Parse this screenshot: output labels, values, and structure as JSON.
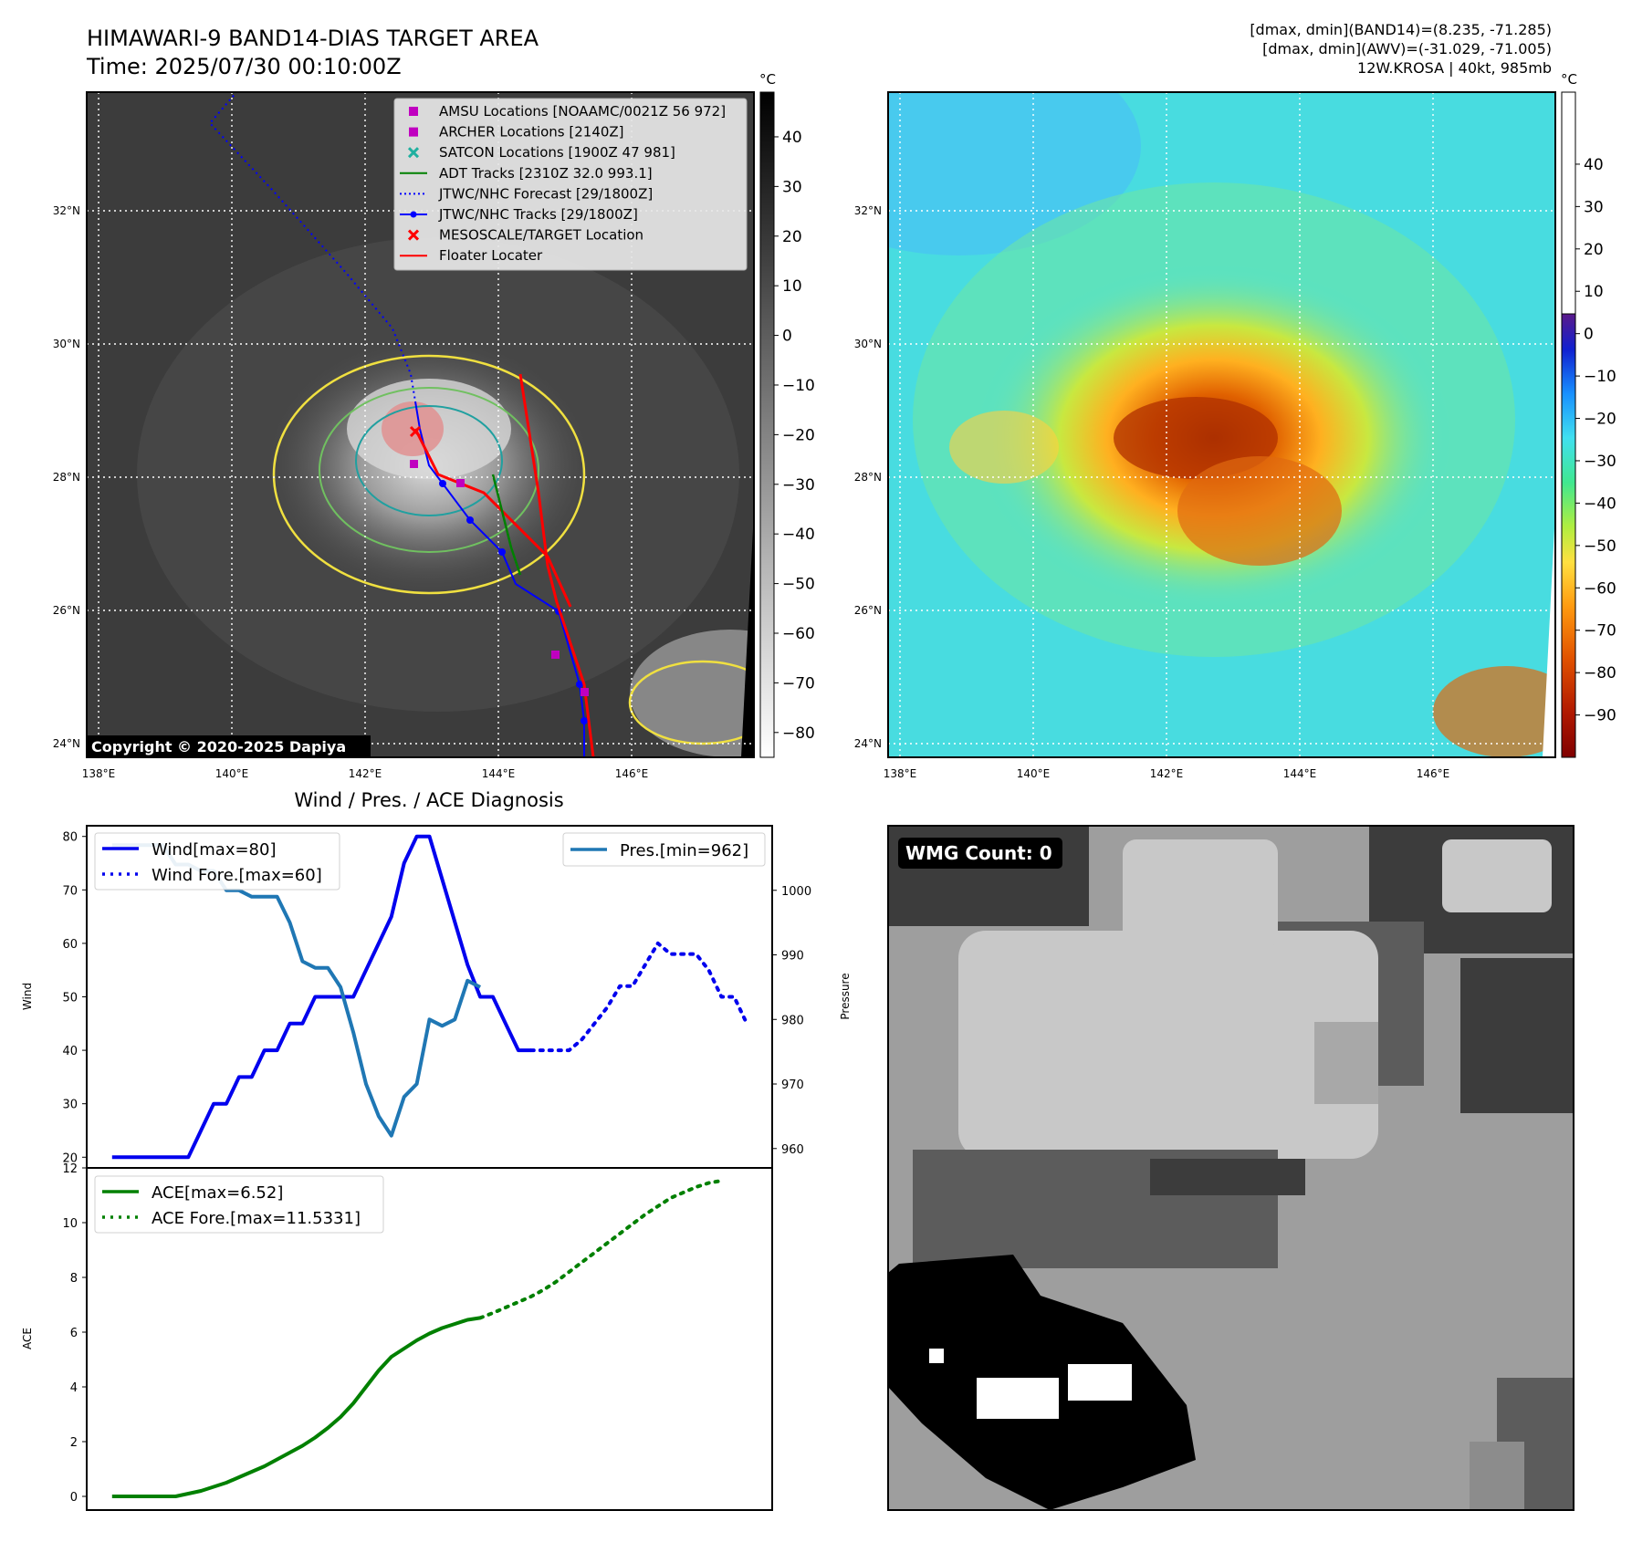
{
  "header": {
    "title_line1": "HIMAWARI-9 BAND14-DIAS TARGET AREA",
    "title_line2": "Time: 2025/07/30 00:10:00Z",
    "info_line1": "[dmax, dmin](BAND14)=(8.235, -71.285)",
    "info_line2": "[dmax, dmin](AWV)=(-31.029, -71.005)",
    "info_line3": "12W.KROSA | 40kt, 985mb"
  },
  "map_ir": {
    "lon_ticks": [
      "138°E",
      "140°E",
      "142°E",
      "144°E",
      "146°E"
    ],
    "lat_ticks": [
      "32°N",
      "30°N",
      "28°N",
      "26°N",
      "24°N"
    ],
    "colorbar_unit": "°C",
    "colorbar_ticks": [
      "40",
      "30",
      "20",
      "10",
      "0",
      "−10",
      "−20",
      "−30",
      "−40",
      "−50",
      "−60",
      "−70",
      "−80"
    ],
    "copyright": "Copyright © 2020-2025 Dapiya",
    "legend": [
      {
        "label": "AMSU Locations [NOAAMC/0021Z 56 972]",
        "marker": "square",
        "color": "#c000c0"
      },
      {
        "label": "ARCHER Locations [2140Z]",
        "marker": "square",
        "color": "#c000c0"
      },
      {
        "label": "SATCON Locations [1900Z 47 981]",
        "marker": "x",
        "color": "#20b0a0"
      },
      {
        "label": "ADT Tracks [2310Z 32.0 993.1]",
        "marker": "line",
        "color": "#008000"
      },
      {
        "label": "JTWC/NHC Forecast [29/1800Z]",
        "marker": "dotted",
        "color": "#0000ff"
      },
      {
        "label": "JTWC/NHC Tracks [29/1800Z]",
        "marker": "line-dot",
        "color": "#0000ff"
      },
      {
        "label": "MESOSCALE/TARGET Location",
        "marker": "x",
        "color": "#ff0000"
      },
      {
        "label": "Floater Locater",
        "marker": "line",
        "color": "#ff0000"
      }
    ]
  },
  "map_awv": {
    "lon_ticks": [
      "138°E",
      "140°E",
      "142°E",
      "144°E",
      "146°E"
    ],
    "lat_ticks": [
      "32°N",
      "30°N",
      "28°N",
      "26°N",
      "24°N"
    ],
    "colorbar_unit": "°C",
    "colorbar_ticks": [
      "40",
      "30",
      "20",
      "10",
      "0",
      "−10",
      "−20",
      "−30",
      "−40",
      "−50",
      "−60",
      "−70",
      "−80",
      "−90"
    ]
  },
  "wmg": {
    "label": "WMG Count: 0"
  },
  "colors": {
    "wind": "#0000ee",
    "pressure": "#1f77b4",
    "ace": "#008000"
  },
  "chart_data": [
    {
      "type": "line",
      "title": "Wind / Pres. / ACE Diagnosis",
      "ylabel": "Wind",
      "y2label": "Pressure",
      "ylim": [
        18,
        82
      ],
      "y2lim": [
        960,
        1010
      ],
      "yticks": [
        20,
        30,
        40,
        50,
        60,
        70,
        80
      ],
      "y2ticks": [
        960,
        970,
        980,
        990,
        1000
      ],
      "series": [
        {
          "name": "Wind[max=80]",
          "axis": "left",
          "style": "solid",
          "x": [
            0,
            1,
            2,
            3,
            4,
            5,
            6,
            7,
            8,
            9,
            10,
            11,
            12,
            13,
            14,
            15,
            16,
            17,
            18,
            19,
            20,
            21,
            22,
            23,
            24,
            25,
            26,
            27,
            28,
            29,
            30,
            31,
            32,
            33,
            34,
            35,
            36,
            37,
            38,
            39,
            40,
            41,
            42,
            43,
            44
          ],
          "y": [
            20,
            20,
            20,
            20,
            20,
            20,
            20,
            25,
            30,
            30,
            35,
            35,
            40,
            40,
            45,
            45,
            50,
            50,
            50,
            50,
            55,
            60,
            65,
            75,
            80,
            80,
            72,
            64,
            56,
            50,
            50,
            45,
            40,
            40,
            null,
            null,
            null,
            null,
            null,
            null,
            null,
            null,
            null,
            null,
            null
          ]
        },
        {
          "name": "Wind Fore.[max=60]",
          "axis": "left",
          "style": "dotted",
          "x": [
            33,
            34,
            35,
            36,
            37,
            38,
            39,
            40,
            41,
            42,
            43,
            44,
            45,
            46,
            47,
            48,
            49,
            50
          ],
          "y": [
            40,
            40,
            40,
            40,
            42,
            45,
            48,
            52,
            52,
            56,
            60,
            58,
            58,
            58,
            55,
            50,
            50,
            45
          ]
        },
        {
          "name": "Pres.[min=962]",
          "axis": "right",
          "style": "solid",
          "x": [
            0,
            1,
            2,
            3,
            4,
            5,
            6,
            7,
            8,
            9,
            10,
            11,
            12,
            13,
            14,
            15,
            16,
            17,
            18,
            19,
            20,
            21,
            22,
            23,
            24,
            25,
            26,
            27,
            28,
            29,
            30,
            31,
            32,
            33,
            34,
            35
          ],
          "y": [
            1007,
            1007,
            1007,
            1007,
            1007,
            1004,
            1004,
            1003,
            1003,
            1000,
            1000,
            999,
            999,
            999,
            995,
            989,
            988,
            988,
            985,
            978,
            970,
            965,
            962,
            968,
            970,
            980,
            979,
            980,
            986,
            985,
            null,
            null,
            null,
            null,
            null,
            null
          ]
        },
        {
          "name": "ACE[max=6.52]",
          "axis": "ace",
          "style": "solid",
          "x": [
            0,
            1,
            2,
            3,
            4,
            5,
            6,
            7,
            8,
            9,
            10,
            11,
            12,
            13,
            14,
            15,
            16,
            17,
            18,
            19,
            20,
            21,
            22,
            23,
            24,
            25,
            26,
            27,
            28,
            29
          ],
          "y": [
            0,
            0,
            0,
            0,
            0,
            0,
            0.1,
            0.2,
            0.35,
            0.5,
            0.7,
            0.9,
            1.1,
            1.35,
            1.6,
            1.85,
            2.15,
            2.5,
            2.9,
            3.4,
            4.0,
            4.6,
            5.1,
            5.4,
            5.7,
            5.95,
            6.15,
            6.3,
            6.45,
            6.52
          ]
        },
        {
          "name": "ACE Fore.[max=11.5331]",
          "axis": "ace",
          "style": "dotted",
          "x": [
            29,
            30,
            31,
            32,
            33,
            34,
            35,
            36,
            37,
            38,
            39,
            40,
            41,
            42,
            43,
            44,
            45,
            46,
            47,
            48
          ],
          "y": [
            6.52,
            6.7,
            6.9,
            7.1,
            7.3,
            7.55,
            7.85,
            8.2,
            8.55,
            8.9,
            9.25,
            9.6,
            9.95,
            10.3,
            10.6,
            10.9,
            11.1,
            11.3,
            11.45,
            11.53
          ]
        }
      ],
      "ace_ylabel": "ACE",
      "ace_ylim": [
        -0.5,
        12
      ],
      "ace_yticks": [
        0,
        2,
        4,
        6,
        8,
        10,
        12
      ]
    }
  ]
}
